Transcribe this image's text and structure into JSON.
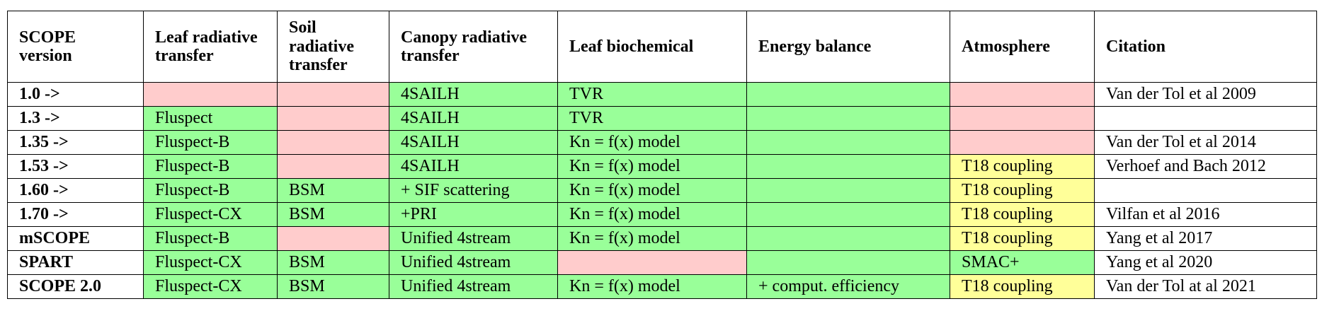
{
  "table": {
    "header": [
      "SCOPE version",
      "Leaf radiative transfer",
      "Soil radiative transfer",
      "Canopy radiative transfer",
      "Leaf biochemical",
      "Energy balance",
      "Atmosphere",
      "Citation"
    ],
    "rows": [
      [
        "1.0 ->",
        null,
        null,
        "4SAILH",
        "TVR",
        null,
        null,
        "Van der Tol et al 2009"
      ],
      [
        "1.3 ->",
        "Fluspect",
        null,
        "4SAILH",
        "TVR",
        null,
        null,
        null
      ],
      [
        "1.35 ->",
        "Fluspect-B",
        null,
        "4SAILH",
        "Kn = f(x) model",
        null,
        null,
        "Van der Tol et al 2014"
      ],
      [
        "1.53 ->",
        "Fluspect-B",
        null,
        "4SAILH",
        "Kn = f(x) model",
        null,
        "T18 coupling",
        "Verhoef and Bach 2012"
      ],
      [
        "1.60 ->",
        "Fluspect-B",
        "BSM",
        "+ SIF scattering",
        "Kn = f(x) model",
        null,
        "T18 coupling",
        null
      ],
      [
        "1.70 ->",
        "Fluspect-CX",
        "BSM",
        "+PRI",
        "Kn = f(x) model",
        null,
        "T18 coupling",
        "Vilfan et al 2016"
      ],
      [
        "mSCOPE",
        "Fluspect-B",
        null,
        "Unified 4stream",
        "Kn = f(x) model",
        null,
        "T18 coupling",
        "Yang et al 2017"
      ],
      [
        "SPART",
        "Fluspect-CX",
        "BSM",
        "Unified 4stream",
        null,
        null,
        "SMAC+",
        "Yang et al 2020"
      ],
      [
        "SCOPE 2.0",
        "Fluspect-CX",
        "BSM",
        "Unified 4stream",
        "Kn = f(x) model",
        "+ comput. efficiency",
        "T18 coupling",
        "Van der Tol at al 2021"
      ]
    ]
  }
}
